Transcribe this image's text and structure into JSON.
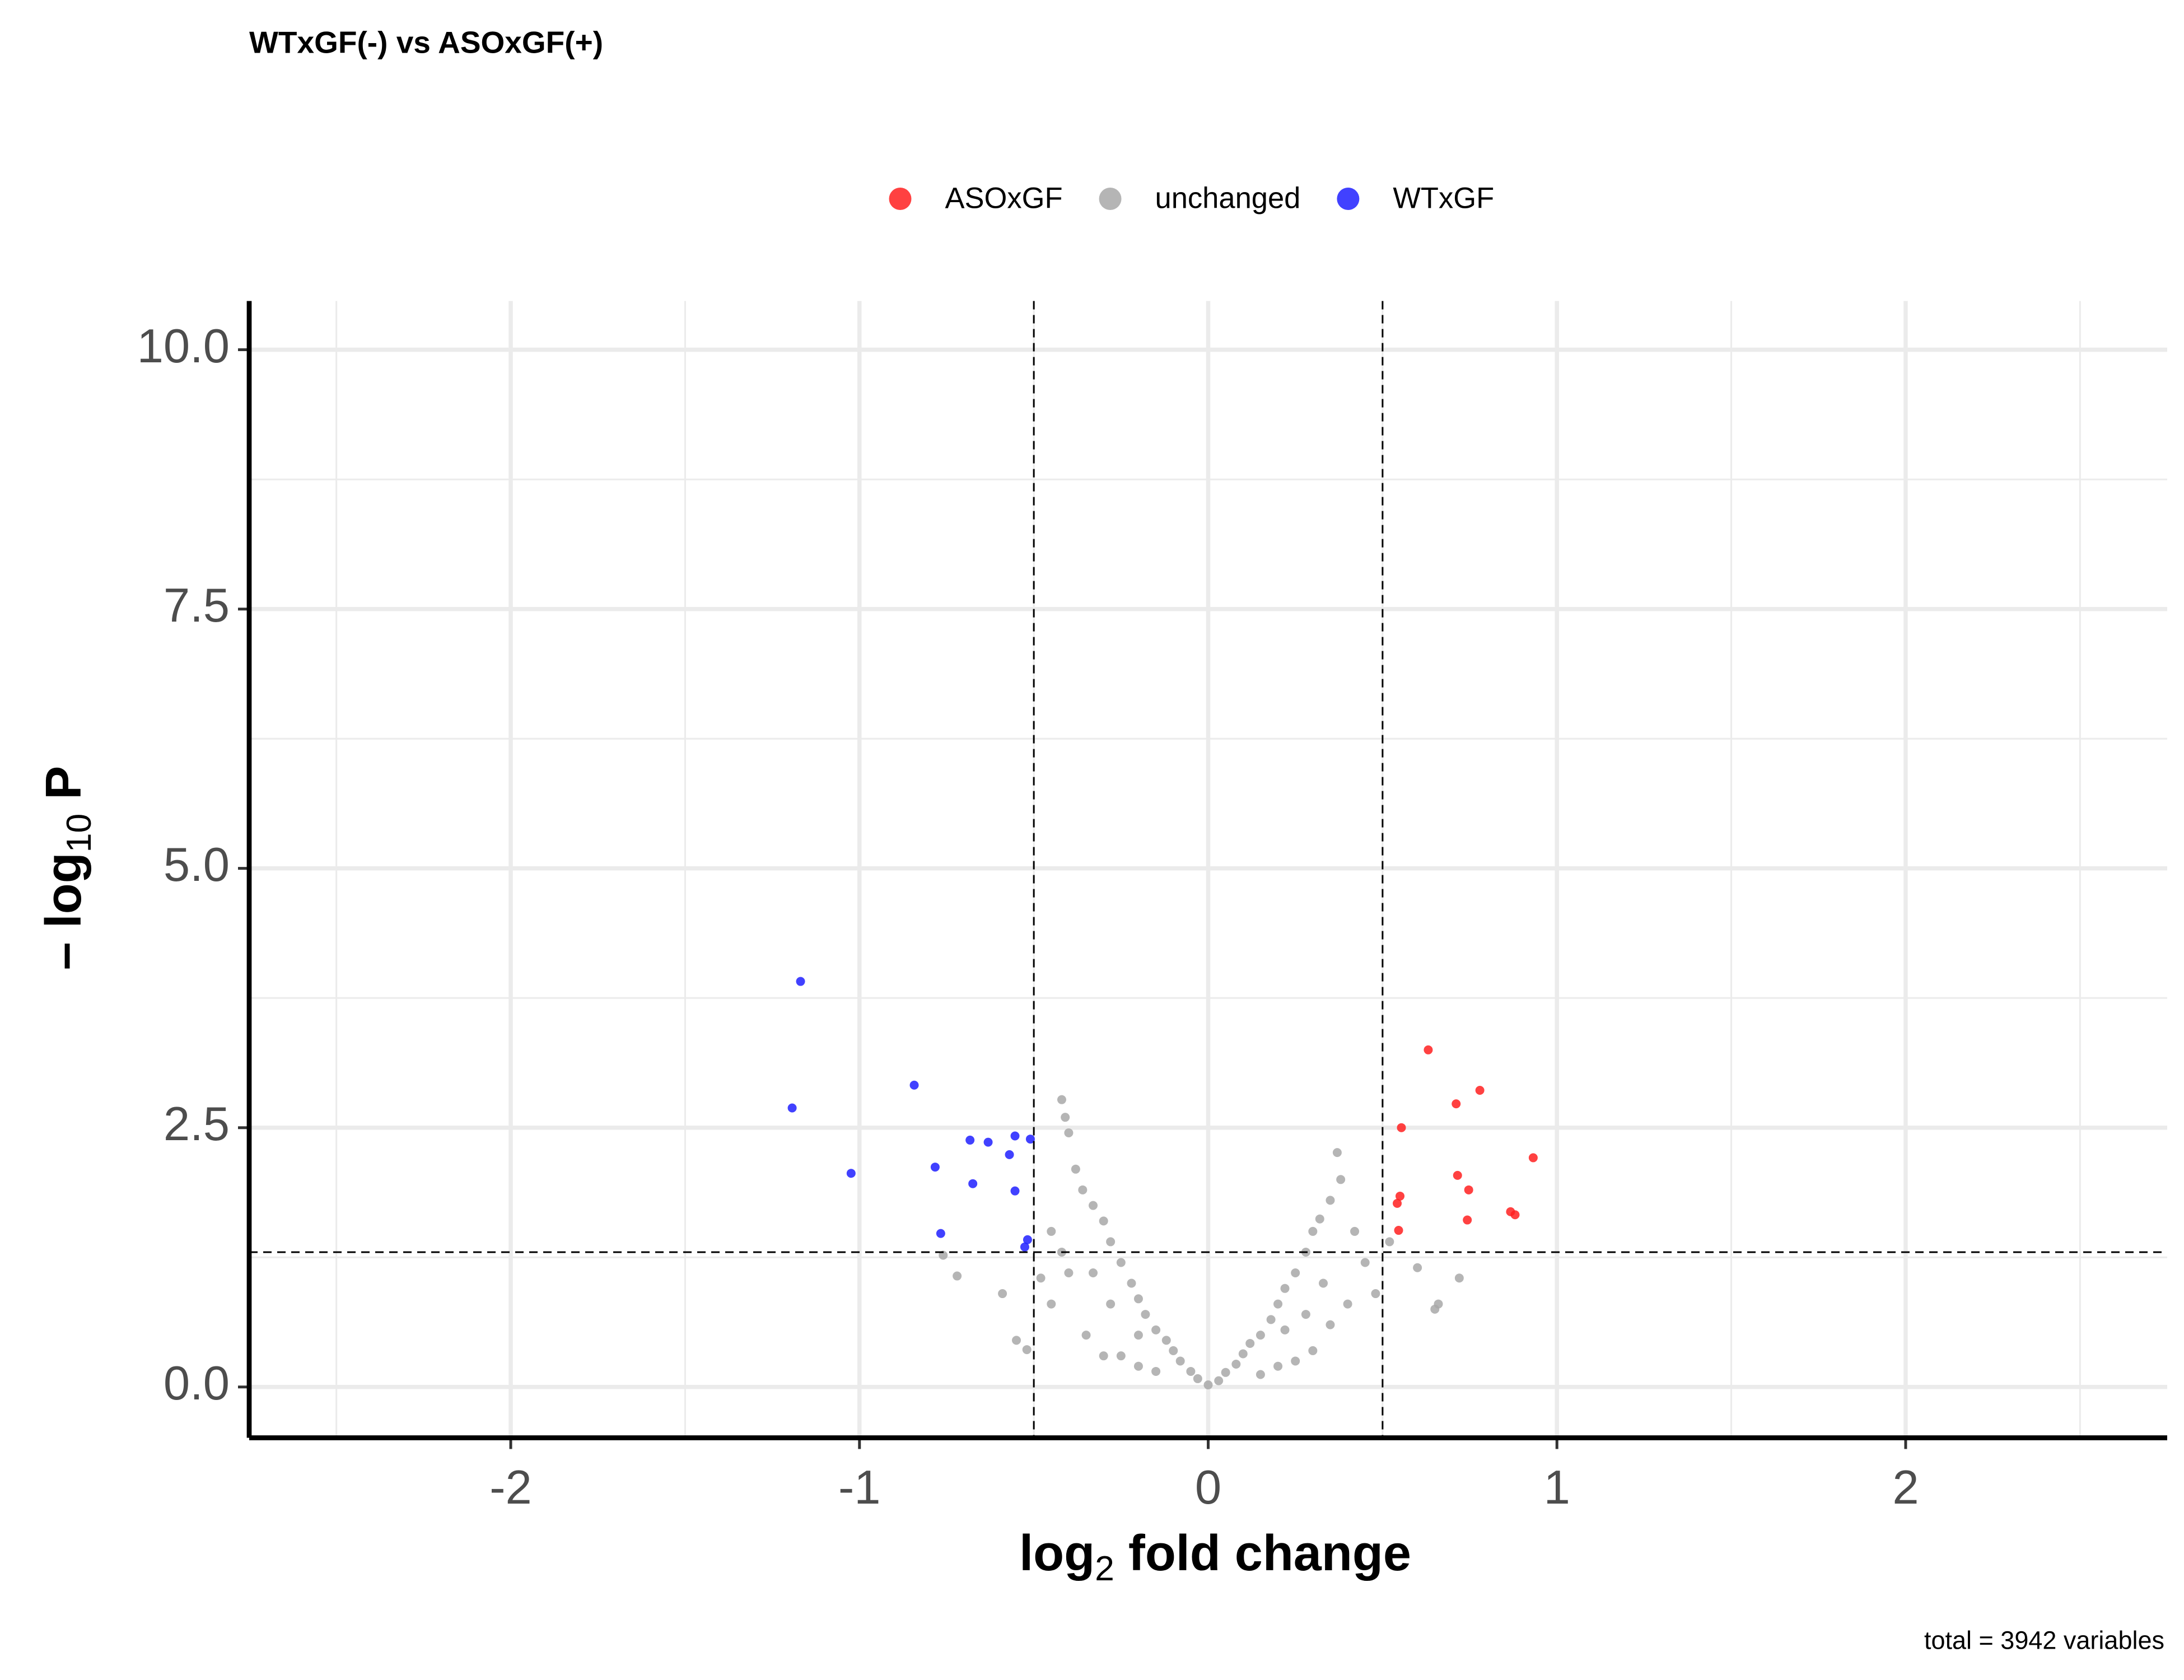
{
  "chart_data": {
    "type": "scatter",
    "title": "WTxGF(-) vs ASOxGF(+)",
    "caption": "total = 3942 variables",
    "xlabel": [
      "log",
      "2",
      " fold change"
    ],
    "ylabel": [
      "– log",
      "10",
      " P"
    ],
    "xlim": [
      -2.75,
      2.75
    ],
    "ylim": [
      -0.49,
      10.47
    ],
    "xticks": [
      -2,
      -1,
      0,
      1,
      2
    ],
    "yticks": [
      {
        "value": 0,
        "label": "0.0"
      },
      2.5,
      {
        "value": 5,
        "label": "5.0"
      },
      7.5,
      {
        "value": 10,
        "label": "10.0"
      }
    ],
    "xminorticks": [
      -2.5,
      -1.5,
      -0.5,
      0.5,
      1.5,
      2.5
    ],
    "yminorticks": [
      1.25,
      3.75,
      6.25,
      8.75
    ],
    "grid": true,
    "cutoffs": {
      "x": [
        -0.5,
        0.5
      ],
      "y": 1.3
    },
    "legend": "top",
    "series": [
      {
        "name": "ASOxGF",
        "color": "#ff2020",
        "x": [
          0.631,
          0.779,
          0.711,
          0.554,
          0.932,
          0.715,
          0.747,
          0.55,
          0.542,
          0.867,
          0.88,
          0.743,
          0.546
        ],
        "values": [
          3.25,
          2.86,
          2.73,
          2.5,
          2.21,
          2.04,
          1.9,
          1.84,
          1.77,
          1.69,
          1.66,
          1.61,
          1.51
        ]
      },
      {
        "name": "unchanged",
        "color": "#a8a8a8",
        "x": [
          -0.42,
          -0.41,
          -0.4,
          -0.38,
          -0.36,
          -0.33,
          -0.3,
          -0.28,
          -0.25,
          -0.22,
          -0.2,
          -0.18,
          -0.15,
          -0.12,
          -0.1,
          -0.08,
          -0.05,
          -0.03,
          0,
          0.03,
          0.05,
          0.08,
          0.1,
          0.12,
          0.15,
          0.18,
          0.2,
          0.22,
          0.25,
          0.28,
          0.3,
          0.32,
          0.35,
          0.37,
          0.38,
          0.42,
          0.45,
          0.48,
          0.52,
          0.6,
          0.66,
          0.72,
          0.65,
          -0.72,
          -0.76,
          -0.59,
          -0.55,
          -0.52,
          -0.48,
          -0.45,
          -0.35,
          -0.3,
          -0.25,
          -0.2,
          0.2,
          0.25,
          0.3,
          0.35,
          0.4,
          -0.4,
          -0.45,
          -0.42,
          -0.28,
          0.28,
          -0.15,
          0.15,
          -0.33,
          0.33,
          -0.2,
          0.22
        ],
        "values": [
          2.77,
          2.6,
          2.45,
          2.1,
          1.9,
          1.75,
          1.6,
          1.4,
          1.2,
          1.0,
          0.85,
          0.7,
          0.55,
          0.45,
          0.35,
          0.25,
          0.15,
          0.08,
          0.02,
          0.06,
          0.14,
          0.22,
          0.32,
          0.42,
          0.5,
          0.65,
          0.8,
          0.95,
          1.1,
          1.3,
          1.5,
          1.62,
          1.8,
          2.26,
          2.0,
          1.5,
          1.2,
          0.9,
          1.4,
          1.15,
          0.8,
          1.05,
          0.75,
          1.07,
          1.27,
          0.9,
          0.45,
          0.36,
          1.05,
          0.8,
          0.5,
          0.3,
          0.3,
          0.2,
          0.2,
          0.25,
          0.35,
          0.6,
          0.8,
          1.1,
          1.5,
          1.3,
          0.8,
          0.7,
          0.15,
          0.12,
          1.1,
          1.0,
          0.5,
          0.55
        ]
      },
      {
        "name": "WTxGF",
        "color": "#2020ff",
        "x": [
          -1.169,
          -1.193,
          -0.843,
          -1.024,
          -0.783,
          -0.683,
          -0.631,
          -0.554,
          -0.51,
          -0.57,
          -0.675,
          -0.554,
          -0.767,
          -0.518,
          -0.526
        ],
        "values": [
          3.91,
          2.69,
          2.91,
          2.06,
          2.12,
          2.38,
          2.36,
          2.42,
          2.39,
          2.24,
          1.96,
          1.89,
          1.48,
          1.42,
          1.35
        ]
      }
    ]
  }
}
